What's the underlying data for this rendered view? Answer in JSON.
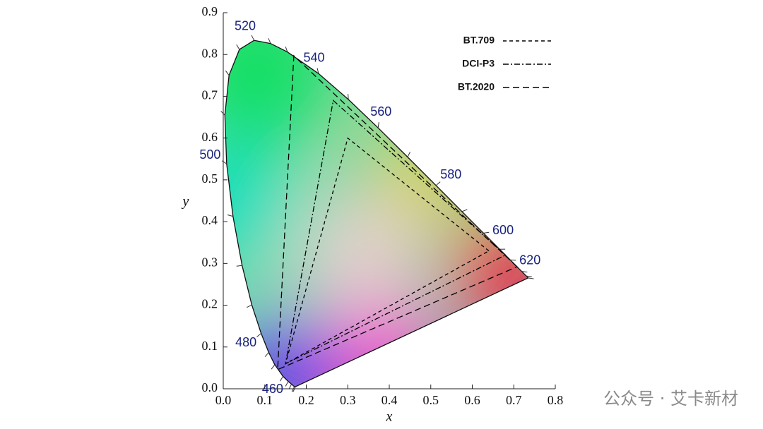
{
  "chart_data": {
    "type": "line",
    "x_label": "x",
    "y_label": "y",
    "xlim": [
      0,
      0.8
    ],
    "ylim": [
      0,
      0.9
    ],
    "xticks": [
      {
        "value": 0,
        "label": "0.0"
      },
      {
        "value": 0.1,
        "label": "0.1"
      },
      {
        "value": 0.2,
        "label": "0.2"
      },
      {
        "value": 0.3,
        "label": "0.3"
      },
      {
        "value": 0.4,
        "label": "0.4"
      },
      {
        "value": 0.5,
        "label": "0.5"
      },
      {
        "value": 0.6,
        "label": "0.6"
      },
      {
        "value": 0.7,
        "label": "0.7"
      },
      {
        "value": 0.8,
        "label": "0.8"
      }
    ],
    "yticks": [
      {
        "value": 0,
        "label": "0.0"
      },
      {
        "value": 0.1,
        "label": "0.1"
      },
      {
        "value": 0.2,
        "label": "0.2"
      },
      {
        "value": 0.3,
        "label": "0.3"
      },
      {
        "value": 0.4,
        "label": "0.4"
      },
      {
        "value": 0.5,
        "label": "0.5"
      },
      {
        "value": 0.6,
        "label": "0.6"
      },
      {
        "value": 0.7,
        "label": "0.7"
      },
      {
        "value": 0.8,
        "label": "0.8"
      },
      {
        "value": 0.9,
        "label": "0.9"
      }
    ],
    "locus": {
      "wavelength": [
        null,
        null,
        null,
        null,
        460,
        null,
        null,
        480,
        null,
        null,
        null,
        500,
        null,
        null,
        null,
        520,
        null,
        null,
        540,
        null,
        560,
        null,
        580,
        null,
        600,
        null,
        620,
        null,
        null,
        null
      ],
      "x": [
        0.1741,
        0.1714,
        0.1644,
        0.1566,
        0.144,
        0.1241,
        0.1096,
        0.0913,
        0.0687,
        0.0454,
        0.0235,
        0.0082,
        0.0039,
        0.0139,
        0.0389,
        0.0743,
        0.1142,
        0.1547,
        0.2296,
        0.3016,
        0.3731,
        0.4441,
        0.5125,
        0.5752,
        0.627,
        0.6658,
        0.6915,
        0.719,
        0.73,
        0.7347
      ],
      "y": [
        0.005,
        0.0051,
        0.0109,
        0.0177,
        0.0297,
        0.0578,
        0.0868,
        0.1327,
        0.2007,
        0.295,
        0.4127,
        0.5384,
        0.6548,
        0.7502,
        0.812,
        0.8338,
        0.8262,
        0.8059,
        0.7543,
        0.6923,
        0.6245,
        0.5547,
        0.4866,
        0.4242,
        0.3725,
        0.334,
        0.3083,
        0.2809,
        0.27,
        0.2653
      ]
    },
    "series": [
      {
        "name": "BT.709",
        "color": "#000000",
        "x": [
          0.64,
          0.3,
          0.15
        ],
        "y": [
          0.33,
          0.6,
          0.06
        ]
      },
      {
        "name": "DCI-P3",
        "color": "#000000",
        "x": [
          0.68,
          0.265,
          0.15
        ],
        "y": [
          0.32,
          0.69,
          0.06
        ]
      },
      {
        "name": "BT.2020",
        "color": "#000000",
        "x": [
          0.708,
          0.17,
          0.131
        ],
        "y": [
          0.292,
          0.797,
          0.046
        ]
      }
    ],
    "legend": "top-right",
    "watermark": "公众号 · 艾卡新材"
  }
}
